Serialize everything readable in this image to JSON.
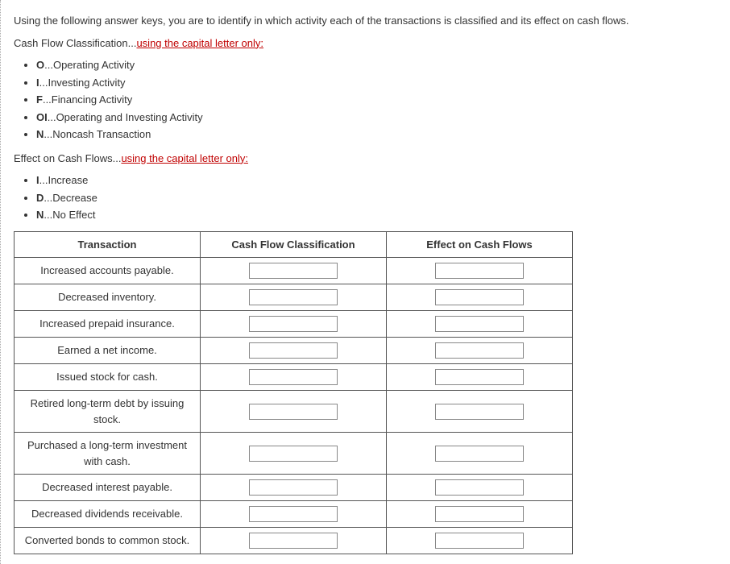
{
  "intro": "Using the following answer keys, you are to identify in which activity each of the transactions is classified and its effect on cash flows.",
  "classification_heading_prefix": "Cash Flow Classification...",
  "classification_heading_suffix": "using the capital letter only:",
  "classification_keys": [
    {
      "code": "O",
      "label": "...Operating Activity"
    },
    {
      "code": "I",
      "label": "...Investing Activity"
    },
    {
      "code": "F",
      "label": "...Financing Activity"
    },
    {
      "code": "OI",
      "label": "...Operating and Investing Activity"
    },
    {
      "code": "N",
      "label": "...Noncash Transaction"
    }
  ],
  "effect_heading_prefix": "Effect on Cash Flows...",
  "effect_heading_suffix": "using the capital letter only:",
  "effect_keys": [
    {
      "code": "I",
      "label": "...Increase"
    },
    {
      "code": "D",
      "label": "...Decrease"
    },
    {
      "code": "N",
      "label": "...No Effect"
    }
  ],
  "table": {
    "headers": {
      "transaction": "Transaction",
      "classification": "Cash Flow Classification",
      "effect": "Effect on Cash Flows"
    },
    "rows": [
      {
        "transaction": "Increased accounts payable.",
        "classification": "",
        "effect": ""
      },
      {
        "transaction": "Decreased inventory.",
        "classification": "",
        "effect": ""
      },
      {
        "transaction": "Increased prepaid insurance.",
        "classification": "",
        "effect": ""
      },
      {
        "transaction": "Earned a net income.",
        "classification": "",
        "effect": ""
      },
      {
        "transaction": "Issued stock for cash.",
        "classification": "",
        "effect": ""
      },
      {
        "transaction": "Retired long-term debt by issuing stock.",
        "classification": "",
        "effect": ""
      },
      {
        "transaction": "Purchased a long-term investment with cash.",
        "classification": "",
        "effect": ""
      },
      {
        "transaction": "Decreased interest payable.",
        "classification": "",
        "effect": ""
      },
      {
        "transaction": "Decreased dividends receivable.",
        "classification": "",
        "effect": ""
      },
      {
        "transaction": "Converted bonds to common stock.",
        "classification": "",
        "effect": ""
      }
    ]
  }
}
